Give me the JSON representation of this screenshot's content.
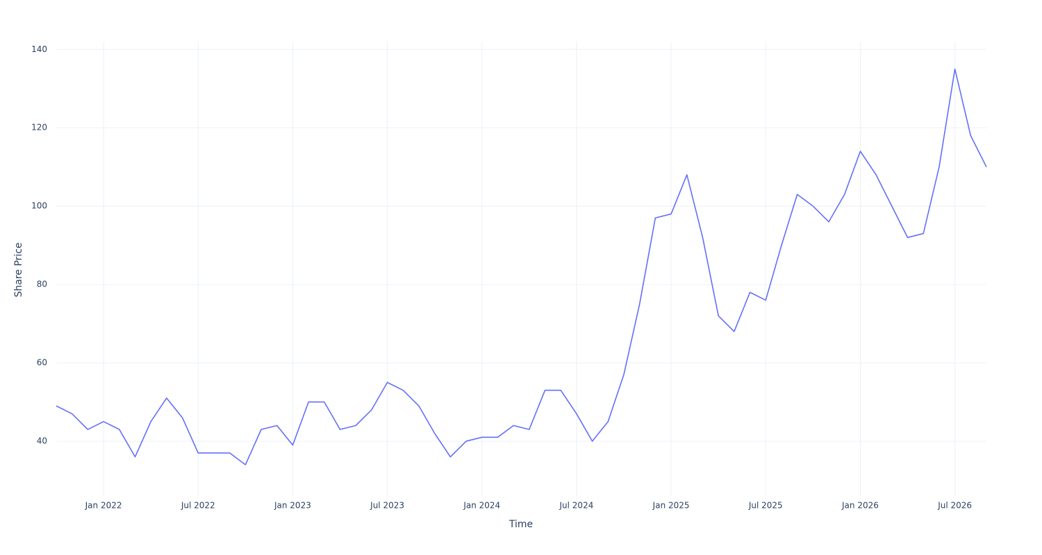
{
  "chart_data": {
    "type": "line",
    "x_label": "Time",
    "y_label": "Share Price",
    "color": "#636efa",
    "grid": true,
    "x": [
      "2021-10",
      "2021-11",
      "2021-12",
      "2022-01",
      "2022-02",
      "2022-03",
      "2022-04",
      "2022-05",
      "2022-06",
      "2022-07",
      "2022-08",
      "2022-09",
      "2022-10",
      "2022-11",
      "2022-12",
      "2023-01",
      "2023-02",
      "2023-03",
      "2023-04",
      "2023-05",
      "2023-06",
      "2023-07",
      "2023-08",
      "2023-09",
      "2023-10",
      "2023-11",
      "2023-12",
      "2024-01",
      "2024-02",
      "2024-03",
      "2024-04",
      "2024-05",
      "2024-06",
      "2024-07",
      "2024-08",
      "2024-09",
      "2024-10",
      "2024-11",
      "2024-12",
      "2025-01",
      "2025-02",
      "2025-03",
      "2025-04",
      "2025-05",
      "2025-06",
      "2025-07",
      "2025-08",
      "2025-09",
      "2025-10",
      "2025-11",
      "2025-12",
      "2026-01",
      "2026-02",
      "2026-03",
      "2026-04",
      "2026-05",
      "2026-06",
      "2026-07",
      "2026-08",
      "2026-09"
    ],
    "values": [
      49,
      47,
      43,
      45,
      43,
      36,
      45,
      51,
      46,
      37,
      37,
      37,
      34,
      43,
      44,
      39,
      50,
      50,
      43,
      44,
      48,
      55,
      53,
      49,
      42,
      36,
      40,
      41,
      41,
      44,
      43,
      53,
      53,
      47,
      40,
      45,
      57,
      75,
      97,
      98,
      108,
      92,
      72,
      68,
      78,
      76,
      90,
      103,
      100,
      96,
      103,
      114,
      108,
      100,
      92,
      93,
      110,
      135,
      118,
      110
    ],
    "xlim": [
      "2021-10",
      "2026-09"
    ],
    "xticks": [
      {
        "value": "2022-01",
        "label": "Jan 2022"
      },
      {
        "value": "2022-07",
        "label": "Jul 2022"
      },
      {
        "value": "2023-01",
        "label": "Jan 2023"
      },
      {
        "value": "2023-07",
        "label": "Jul 2023"
      },
      {
        "value": "2024-01",
        "label": "Jan 2024"
      },
      {
        "value": "2024-07",
        "label": "Jul 2024"
      },
      {
        "value": "2025-01",
        "label": "Jan 2025"
      },
      {
        "value": "2025-07",
        "label": "Jul 2025"
      },
      {
        "value": "2026-01",
        "label": "Jan 2026"
      },
      {
        "value": "2026-07",
        "label": "Jul 2026"
      }
    ],
    "ylim": [
      26,
      142
    ],
    "yticks": [
      40,
      60,
      80,
      100,
      120,
      140
    ]
  }
}
